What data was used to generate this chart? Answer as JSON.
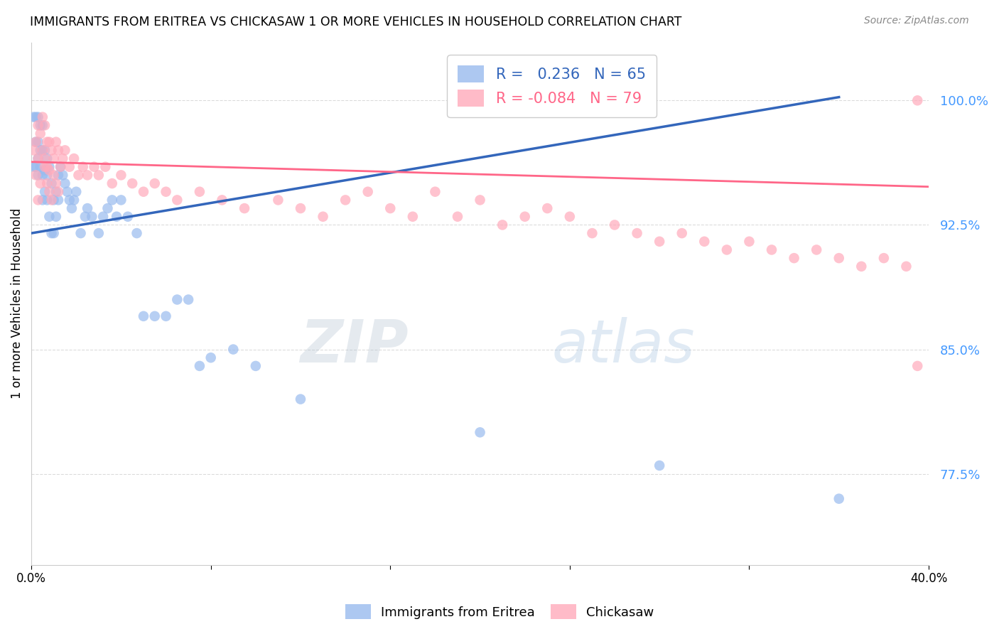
{
  "title": "IMMIGRANTS FROM ERITREA VS CHICKASAW 1 OR MORE VEHICLES IN HOUSEHOLD CORRELATION CHART",
  "source": "Source: ZipAtlas.com",
  "ylabel": "1 or more Vehicles in Household",
  "yticks": [
    0.775,
    0.85,
    0.925,
    1.0
  ],
  "ytick_labels": [
    "77.5%",
    "85.0%",
    "92.5%",
    "100.0%"
  ],
  "xlim": [
    0.0,
    0.4
  ],
  "ylim": [
    0.72,
    1.035
  ],
  "blue_R": 0.236,
  "blue_N": 65,
  "pink_R": -0.084,
  "pink_N": 79,
  "blue_label": "Immigrants from Eritrea",
  "pink_label": "Chickasaw",
  "blue_color": "#99BBEE",
  "pink_color": "#FFAABB",
  "blue_line_color": "#3366BB",
  "pink_line_color": "#FF6688",
  "watermark_zip": "ZIP",
  "watermark_atlas": "atlas",
  "background_color": "#FFFFFF",
  "blue_scatter_x": [
    0.001,
    0.001,
    0.002,
    0.002,
    0.002,
    0.003,
    0.003,
    0.003,
    0.003,
    0.004,
    0.004,
    0.004,
    0.005,
    0.005,
    0.005,
    0.005,
    0.006,
    0.006,
    0.006,
    0.007,
    0.007,
    0.007,
    0.008,
    0.008,
    0.009,
    0.009,
    0.01,
    0.01,
    0.011,
    0.011,
    0.012,
    0.012,
    0.013,
    0.014,
    0.015,
    0.016,
    0.017,
    0.018,
    0.019,
    0.02,
    0.022,
    0.024,
    0.025,
    0.027,
    0.03,
    0.032,
    0.034,
    0.036,
    0.038,
    0.04,
    0.043,
    0.047,
    0.05,
    0.055,
    0.06,
    0.065,
    0.07,
    0.075,
    0.08,
    0.09,
    0.1,
    0.12,
    0.2,
    0.28,
    0.36
  ],
  "blue_scatter_y": [
    0.96,
    0.99,
    0.96,
    0.975,
    0.99,
    0.955,
    0.965,
    0.975,
    0.99,
    0.96,
    0.97,
    0.985,
    0.94,
    0.955,
    0.97,
    0.985,
    0.945,
    0.958,
    0.97,
    0.94,
    0.955,
    0.965,
    0.93,
    0.96,
    0.92,
    0.95,
    0.92,
    0.94,
    0.93,
    0.945,
    0.94,
    0.955,
    0.96,
    0.955,
    0.95,
    0.945,
    0.94,
    0.935,
    0.94,
    0.945,
    0.92,
    0.93,
    0.935,
    0.93,
    0.92,
    0.93,
    0.935,
    0.94,
    0.93,
    0.94,
    0.93,
    0.92,
    0.87,
    0.87,
    0.87,
    0.88,
    0.88,
    0.84,
    0.845,
    0.85,
    0.84,
    0.82,
    0.8,
    0.78,
    0.76
  ],
  "pink_scatter_x": [
    0.001,
    0.002,
    0.003,
    0.003,
    0.004,
    0.005,
    0.005,
    0.006,
    0.006,
    0.007,
    0.007,
    0.008,
    0.008,
    0.009,
    0.01,
    0.011,
    0.012,
    0.013,
    0.014,
    0.015,
    0.017,
    0.019,
    0.021,
    0.023,
    0.025,
    0.028,
    0.03,
    0.033,
    0.036,
    0.04,
    0.045,
    0.05,
    0.055,
    0.06,
    0.065,
    0.075,
    0.085,
    0.095,
    0.11,
    0.12,
    0.13,
    0.14,
    0.15,
    0.16,
    0.17,
    0.18,
    0.19,
    0.2,
    0.21,
    0.22,
    0.23,
    0.24,
    0.25,
    0.26,
    0.27,
    0.28,
    0.29,
    0.3,
    0.31,
    0.32,
    0.33,
    0.34,
    0.35,
    0.36,
    0.37,
    0.38,
    0.39,
    0.395,
    0.002,
    0.003,
    0.004,
    0.006,
    0.007,
    0.008,
    0.009,
    0.01,
    0.011,
    0.012,
    0.395
  ],
  "pink_scatter_y": [
    0.97,
    0.975,
    0.985,
    0.965,
    0.98,
    0.99,
    0.97,
    0.985,
    0.965,
    0.975,
    0.96,
    0.975,
    0.958,
    0.97,
    0.965,
    0.975,
    0.97,
    0.96,
    0.965,
    0.97,
    0.96,
    0.965,
    0.955,
    0.96,
    0.955,
    0.96,
    0.955,
    0.96,
    0.95,
    0.955,
    0.95,
    0.945,
    0.95,
    0.945,
    0.94,
    0.945,
    0.94,
    0.935,
    0.94,
    0.935,
    0.93,
    0.94,
    0.945,
    0.935,
    0.93,
    0.945,
    0.93,
    0.94,
    0.925,
    0.93,
    0.935,
    0.93,
    0.92,
    0.925,
    0.92,
    0.915,
    0.92,
    0.915,
    0.91,
    0.915,
    0.91,
    0.905,
    0.91,
    0.905,
    0.9,
    0.905,
    0.9,
    1.0,
    0.955,
    0.94,
    0.95,
    0.96,
    0.95,
    0.945,
    0.94,
    0.955,
    0.95,
    0.945,
    0.84
  ],
  "blue_trend_x0": 0.0,
  "blue_trend_y0": 0.92,
  "blue_trend_x1": 0.36,
  "blue_trend_y1": 1.002,
  "pink_trend_x0": 0.0,
  "pink_trend_y0": 0.963,
  "pink_trend_x1": 0.4,
  "pink_trend_y1": 0.948
}
